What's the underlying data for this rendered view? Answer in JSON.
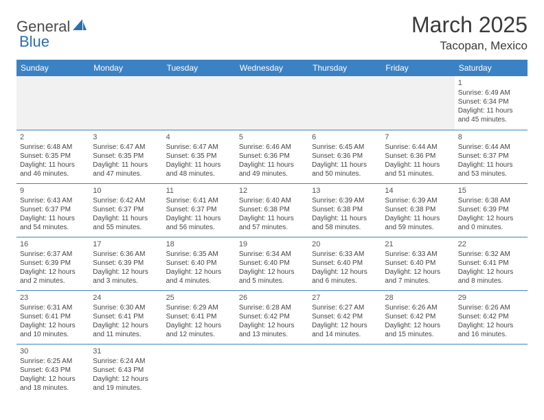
{
  "logo": {
    "text1": "General",
    "text2": "Blue",
    "shape_color": "#2c6fb0"
  },
  "title": "March 2025",
  "location": "Tacopan, Mexico",
  "header_bg": "#3b82c4",
  "header_text_color": "#ffffff",
  "border_color": "#3b82c4",
  "blank_bg": "#f1f1f1",
  "days_of_week": [
    "Sunday",
    "Monday",
    "Tuesday",
    "Wednesday",
    "Thursday",
    "Friday",
    "Saturday"
  ],
  "weeks": [
    [
      null,
      null,
      null,
      null,
      null,
      null,
      {
        "n": "1",
        "sunrise": "Sunrise: 6:49 AM",
        "sunset": "Sunset: 6:34 PM",
        "daylight": "Daylight: 11 hours and 45 minutes."
      }
    ],
    [
      {
        "n": "2",
        "sunrise": "Sunrise: 6:48 AM",
        "sunset": "Sunset: 6:35 PM",
        "daylight": "Daylight: 11 hours and 46 minutes."
      },
      {
        "n": "3",
        "sunrise": "Sunrise: 6:47 AM",
        "sunset": "Sunset: 6:35 PM",
        "daylight": "Daylight: 11 hours and 47 minutes."
      },
      {
        "n": "4",
        "sunrise": "Sunrise: 6:47 AM",
        "sunset": "Sunset: 6:35 PM",
        "daylight": "Daylight: 11 hours and 48 minutes."
      },
      {
        "n": "5",
        "sunrise": "Sunrise: 6:46 AM",
        "sunset": "Sunset: 6:36 PM",
        "daylight": "Daylight: 11 hours and 49 minutes."
      },
      {
        "n": "6",
        "sunrise": "Sunrise: 6:45 AM",
        "sunset": "Sunset: 6:36 PM",
        "daylight": "Daylight: 11 hours and 50 minutes."
      },
      {
        "n": "7",
        "sunrise": "Sunrise: 6:44 AM",
        "sunset": "Sunset: 6:36 PM",
        "daylight": "Daylight: 11 hours and 51 minutes."
      },
      {
        "n": "8",
        "sunrise": "Sunrise: 6:44 AM",
        "sunset": "Sunset: 6:37 PM",
        "daylight": "Daylight: 11 hours and 53 minutes."
      }
    ],
    [
      {
        "n": "9",
        "sunrise": "Sunrise: 6:43 AM",
        "sunset": "Sunset: 6:37 PM",
        "daylight": "Daylight: 11 hours and 54 minutes."
      },
      {
        "n": "10",
        "sunrise": "Sunrise: 6:42 AM",
        "sunset": "Sunset: 6:37 PM",
        "daylight": "Daylight: 11 hours and 55 minutes."
      },
      {
        "n": "11",
        "sunrise": "Sunrise: 6:41 AM",
        "sunset": "Sunset: 6:37 PM",
        "daylight": "Daylight: 11 hours and 56 minutes."
      },
      {
        "n": "12",
        "sunrise": "Sunrise: 6:40 AM",
        "sunset": "Sunset: 6:38 PM",
        "daylight": "Daylight: 11 hours and 57 minutes."
      },
      {
        "n": "13",
        "sunrise": "Sunrise: 6:39 AM",
        "sunset": "Sunset: 6:38 PM",
        "daylight": "Daylight: 11 hours and 58 minutes."
      },
      {
        "n": "14",
        "sunrise": "Sunrise: 6:39 AM",
        "sunset": "Sunset: 6:38 PM",
        "daylight": "Daylight: 11 hours and 59 minutes."
      },
      {
        "n": "15",
        "sunrise": "Sunrise: 6:38 AM",
        "sunset": "Sunset: 6:39 PM",
        "daylight": "Daylight: 12 hours and 0 minutes."
      }
    ],
    [
      {
        "n": "16",
        "sunrise": "Sunrise: 6:37 AM",
        "sunset": "Sunset: 6:39 PM",
        "daylight": "Daylight: 12 hours and 2 minutes."
      },
      {
        "n": "17",
        "sunrise": "Sunrise: 6:36 AM",
        "sunset": "Sunset: 6:39 PM",
        "daylight": "Daylight: 12 hours and 3 minutes."
      },
      {
        "n": "18",
        "sunrise": "Sunrise: 6:35 AM",
        "sunset": "Sunset: 6:40 PM",
        "daylight": "Daylight: 12 hours and 4 minutes."
      },
      {
        "n": "19",
        "sunrise": "Sunrise: 6:34 AM",
        "sunset": "Sunset: 6:40 PM",
        "daylight": "Daylight: 12 hours and 5 minutes."
      },
      {
        "n": "20",
        "sunrise": "Sunrise: 6:33 AM",
        "sunset": "Sunset: 6:40 PM",
        "daylight": "Daylight: 12 hours and 6 minutes."
      },
      {
        "n": "21",
        "sunrise": "Sunrise: 6:33 AM",
        "sunset": "Sunset: 6:40 PM",
        "daylight": "Daylight: 12 hours and 7 minutes."
      },
      {
        "n": "22",
        "sunrise": "Sunrise: 6:32 AM",
        "sunset": "Sunset: 6:41 PM",
        "daylight": "Daylight: 12 hours and 8 minutes."
      }
    ],
    [
      {
        "n": "23",
        "sunrise": "Sunrise: 6:31 AM",
        "sunset": "Sunset: 6:41 PM",
        "daylight": "Daylight: 12 hours and 10 minutes."
      },
      {
        "n": "24",
        "sunrise": "Sunrise: 6:30 AM",
        "sunset": "Sunset: 6:41 PM",
        "daylight": "Daylight: 12 hours and 11 minutes."
      },
      {
        "n": "25",
        "sunrise": "Sunrise: 6:29 AM",
        "sunset": "Sunset: 6:41 PM",
        "daylight": "Daylight: 12 hours and 12 minutes."
      },
      {
        "n": "26",
        "sunrise": "Sunrise: 6:28 AM",
        "sunset": "Sunset: 6:42 PM",
        "daylight": "Daylight: 12 hours and 13 minutes."
      },
      {
        "n": "27",
        "sunrise": "Sunrise: 6:27 AM",
        "sunset": "Sunset: 6:42 PM",
        "daylight": "Daylight: 12 hours and 14 minutes."
      },
      {
        "n": "28",
        "sunrise": "Sunrise: 6:26 AM",
        "sunset": "Sunset: 6:42 PM",
        "daylight": "Daylight: 12 hours and 15 minutes."
      },
      {
        "n": "29",
        "sunrise": "Sunrise: 6:26 AM",
        "sunset": "Sunset: 6:42 PM",
        "daylight": "Daylight: 12 hours and 16 minutes."
      }
    ],
    [
      {
        "n": "30",
        "sunrise": "Sunrise: 6:25 AM",
        "sunset": "Sunset: 6:43 PM",
        "daylight": "Daylight: 12 hours and 18 minutes."
      },
      {
        "n": "31",
        "sunrise": "Sunrise: 6:24 AM",
        "sunset": "Sunset: 6:43 PM",
        "daylight": "Daylight: 12 hours and 19 minutes."
      },
      null,
      null,
      null,
      null,
      null
    ]
  ]
}
